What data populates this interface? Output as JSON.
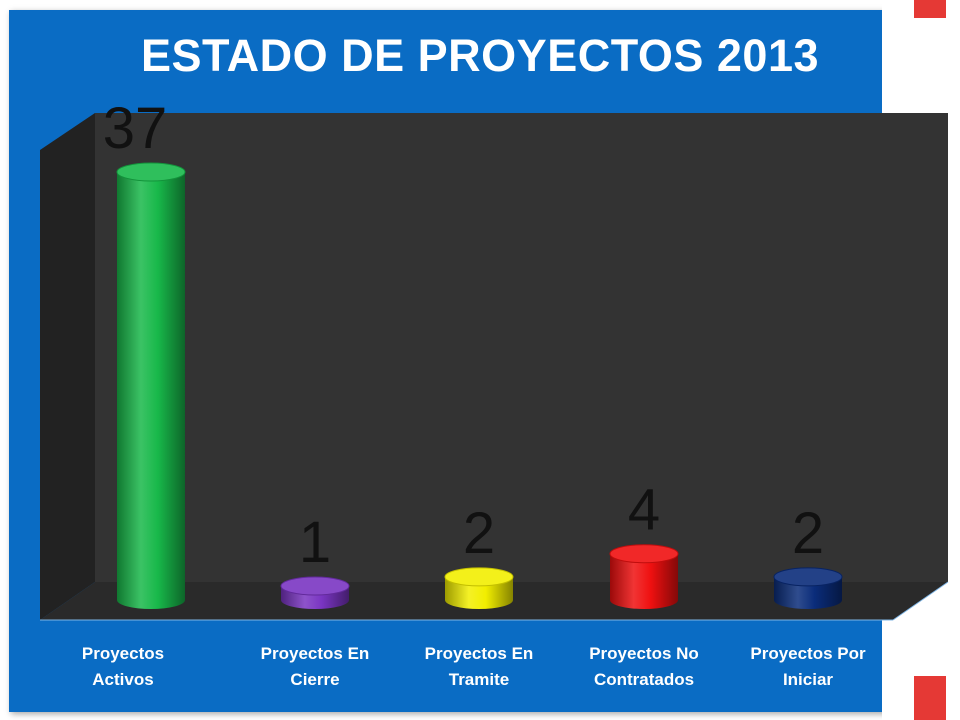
{
  "chart_data": {
    "type": "bar",
    "title": "ESTADO DE PROYECTOS 2013",
    "categories": [
      [
        "Proyectos",
        "Activos"
      ],
      [
        "Proyectos En",
        "Cierre"
      ],
      [
        "Proyectos En",
        "Tramite"
      ],
      [
        "Proyectos No",
        "Contratados"
      ],
      [
        "Proyectos Por",
        "Iniciar"
      ]
    ],
    "values": [
      37,
      1,
      2,
      4,
      2
    ],
    "value_labels": [
      "37",
      "1",
      "2",
      "4",
      "2"
    ],
    "colors": [
      "#18b84a",
      "#7a35c2",
      "#f2ee00",
      "#ef1010",
      "#0a2c7a"
    ],
    "ylim": [
      0,
      37
    ],
    "grid": false,
    "legend": "none"
  },
  "theme": {
    "background": "#0a6cc4",
    "plot_back": "#333333",
    "plot_side": "#222222",
    "plot_floor": "#2a2a2a",
    "accent": "#e53935"
  }
}
